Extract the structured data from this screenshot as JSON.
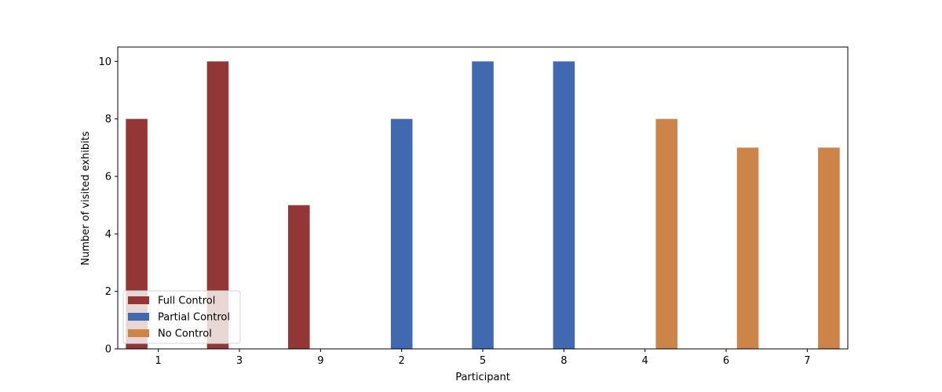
{
  "chart_data": {
    "type": "bar",
    "xlabel": "Participant",
    "ylabel": "Number of visited exhibits",
    "ylim": [
      0,
      10.5
    ],
    "yticks": [
      0,
      2,
      4,
      6,
      8,
      10
    ],
    "categories": [
      "1",
      "3",
      "9",
      "2",
      "5",
      "8",
      "4",
      "6",
      "7"
    ],
    "series": [
      {
        "name": "Full Control",
        "color": "#933736",
        "values": [
          8,
          10,
          5,
          null,
          null,
          null,
          null,
          null,
          null
        ]
      },
      {
        "name": "Partial Control",
        "color": "#4169b0",
        "values": [
          null,
          null,
          null,
          8,
          10,
          10,
          null,
          null,
          null
        ]
      },
      {
        "name": "No Control",
        "color": "#cc8448",
        "values": [
          null,
          null,
          null,
          null,
          null,
          null,
          8,
          7,
          7
        ]
      }
    ],
    "grid": false,
    "legend": {
      "placement": "lower-left"
    }
  }
}
